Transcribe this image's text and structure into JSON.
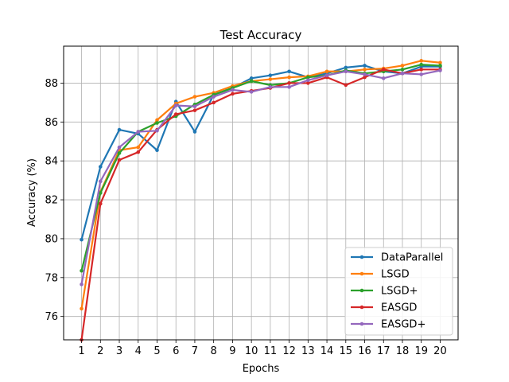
{
  "chart_data": {
    "type": "line",
    "title": "Test Accuracy",
    "xlabel": "Epochs",
    "ylabel": "Accuracy (%)",
    "x": [
      1,
      2,
      3,
      4,
      5,
      6,
      7,
      8,
      9,
      10,
      11,
      12,
      13,
      14,
      15,
      16,
      17,
      18,
      19,
      20
    ],
    "xticks": [
      "1",
      "2",
      "3",
      "4",
      "5",
      "6",
      "7",
      "8",
      "9",
      "10",
      "11",
      "12",
      "13",
      "14",
      "15",
      "16",
      "17",
      "18",
      "19",
      "20"
    ],
    "xlim": [
      0.05,
      20.95
    ],
    "ylim": [
      74.8,
      89.9
    ],
    "yticks": [
      76,
      78,
      80,
      82,
      84,
      86,
      88
    ],
    "ytick_labels": [
      "76",
      "78",
      "80",
      "82",
      "84",
      "86",
      "88"
    ],
    "grid": true,
    "legend_position": "lower-right",
    "series": [
      {
        "name": "DataParallel",
        "color": "#1f77b4",
        "values": [
          79.95,
          83.7,
          85.6,
          85.4,
          84.55,
          87.05,
          85.5,
          87.4,
          87.75,
          88.25,
          88.4,
          88.6,
          88.3,
          88.5,
          88.8,
          88.9,
          88.6,
          88.5,
          88.85,
          88.85
        ]
      },
      {
        "name": "LSGD",
        "color": "#ff7f0e",
        "values": [
          76.4,
          82.4,
          84.55,
          84.7,
          86.1,
          86.95,
          87.3,
          87.5,
          87.85,
          88.1,
          88.2,
          88.3,
          88.35,
          88.6,
          88.6,
          88.7,
          88.75,
          88.9,
          89.15,
          89.05
        ]
      },
      {
        "name": "LSGD+",
        "color": "#2ca02c",
        "values": [
          78.35,
          82.35,
          84.4,
          85.5,
          85.95,
          86.3,
          86.9,
          87.4,
          87.75,
          88.1,
          87.9,
          88.0,
          88.3,
          88.4,
          88.65,
          88.5,
          88.6,
          88.7,
          88.95,
          88.9
        ]
      },
      {
        "name": "EASGD",
        "color": "#d62728",
        "values": [
          74.8,
          81.8,
          84.05,
          84.45,
          85.6,
          86.4,
          86.6,
          87.0,
          87.45,
          87.6,
          87.75,
          88.0,
          88.0,
          88.3,
          87.9,
          88.3,
          88.7,
          88.5,
          88.7,
          88.7
        ]
      },
      {
        "name": "EASGD+",
        "color": "#9467bd",
        "values": [
          77.65,
          82.95,
          84.7,
          85.5,
          85.55,
          86.85,
          86.8,
          87.3,
          87.65,
          87.55,
          87.8,
          87.8,
          88.15,
          88.4,
          88.6,
          88.45,
          88.25,
          88.5,
          88.45,
          88.65
        ]
      }
    ]
  }
}
